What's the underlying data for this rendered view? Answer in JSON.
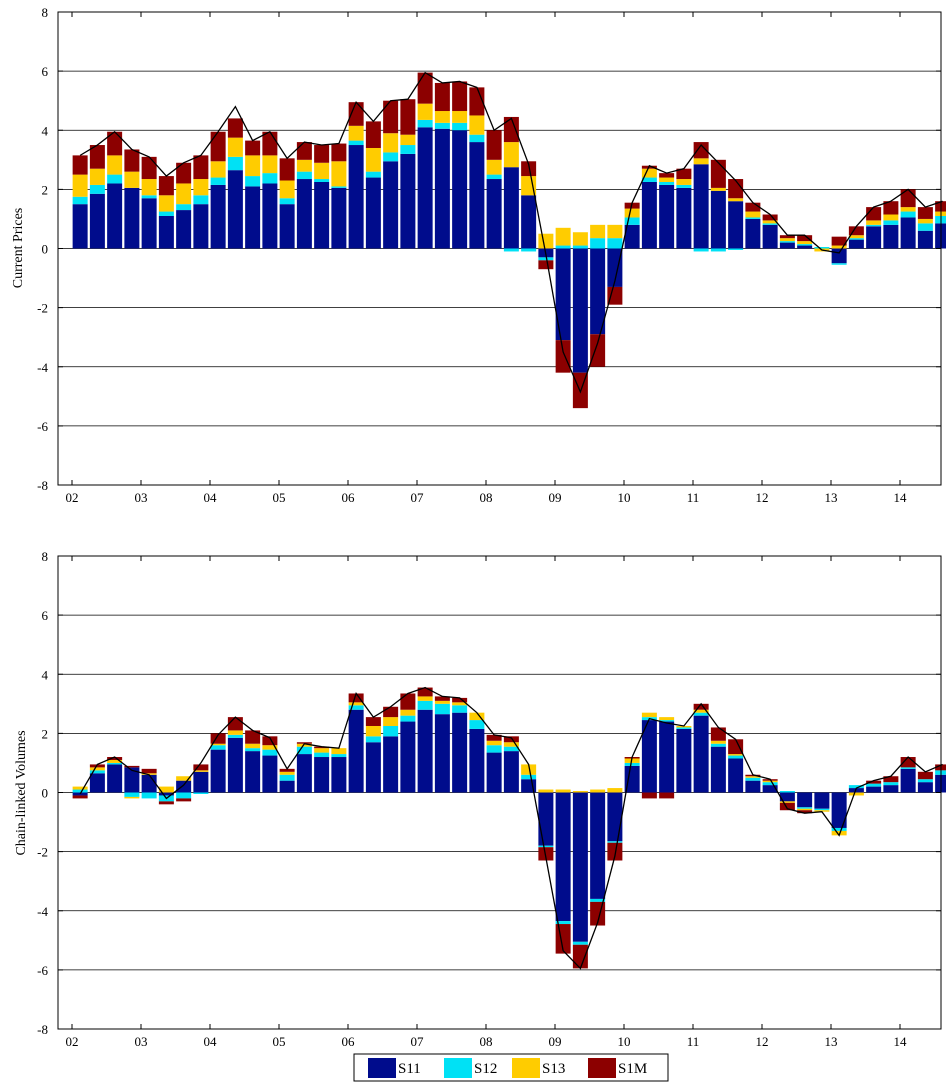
{
  "legend": {
    "items": [
      {
        "label": "S11",
        "color": "#000c8c"
      },
      {
        "label": "S12",
        "color": "#00e1f5"
      },
      {
        "label": "S13",
        "color": "#ffcc00"
      },
      {
        "label": "S1M",
        "color": "#8c0000"
      }
    ]
  },
  "chart_data": [
    {
      "type": "bar",
      "stacked": true,
      "title": "",
      "xlabel": "",
      "ylabel": "Current Prices",
      "ylim": [
        -8,
        8
      ],
      "yticks": [
        -8,
        -6,
        -4,
        -2,
        0,
        2,
        4,
        6,
        8
      ],
      "year_labels": [
        "02",
        "03",
        "04",
        "05",
        "06",
        "07",
        "08",
        "09",
        "10",
        "11",
        "12",
        "13",
        "14"
      ],
      "x": [
        "2002Q1",
        "2002Q2",
        "2002Q3",
        "2002Q4",
        "2003Q1",
        "2003Q2",
        "2003Q3",
        "2003Q4",
        "2004Q1",
        "2004Q2",
        "2004Q3",
        "2004Q4",
        "2005Q1",
        "2005Q2",
        "2005Q3",
        "2005Q4",
        "2006Q1",
        "2006Q2",
        "2006Q3",
        "2006Q4",
        "2007Q1",
        "2007Q2",
        "2007Q3",
        "2007Q4",
        "2008Q1",
        "2008Q2",
        "2008Q3",
        "2008Q4",
        "2009Q1",
        "2009Q2",
        "2009Q3",
        "2009Q4",
        "2010Q1",
        "2010Q2",
        "2010Q3",
        "2010Q4",
        "2011Q1",
        "2011Q2",
        "2011Q3",
        "2011Q4",
        "2012Q1",
        "2012Q2",
        "2012Q3",
        "2012Q4",
        "2013Q1",
        "2013Q2",
        "2013Q3",
        "2013Q4",
        "2014Q1",
        "2014Q2",
        "2014Q3"
      ],
      "grid": "horizontal",
      "series": [
        {
          "name": "S11",
          "color": "#000c8c",
          "values": [
            1.5,
            1.85,
            2.2,
            2.05,
            1.7,
            1.1,
            1.3,
            1.5,
            2.15,
            2.65,
            2.1,
            2.2,
            1.5,
            2.35,
            2.25,
            2.05,
            3.5,
            2.4,
            2.95,
            3.2,
            4.1,
            4.05,
            4.0,
            3.6,
            2.35,
            2.75,
            1.8,
            -0.3,
            -3.1,
            -4.2,
            -2.9,
            -1.3,
            0.8,
            2.25,
            2.15,
            2.05,
            2.85,
            1.95,
            1.6,
            1.0,
            0.8,
            0.2,
            0.1,
            0.0,
            -0.5,
            0.3,
            0.75,
            0.8,
            1.05,
            0.6,
            0.85
          ]
        },
        {
          "name": "S12",
          "color": "#00e1f5",
          "values": [
            0.25,
            0.3,
            0.3,
            0.0,
            0.1,
            0.15,
            0.2,
            0.3,
            0.25,
            0.45,
            0.35,
            0.35,
            0.2,
            0.25,
            0.1,
            0.05,
            0.15,
            0.2,
            0.3,
            0.3,
            0.25,
            0.2,
            0.25,
            0.25,
            0.15,
            -0.1,
            -0.1,
            -0.1,
            0.1,
            0.1,
            0.35,
            0.35,
            0.25,
            0.15,
            0.1,
            0.1,
            -0.1,
            -0.1,
            -0.05,
            0.05,
            0.05,
            0.05,
            0.05,
            0.05,
            -0.05,
            0.05,
            0.05,
            0.15,
            0.2,
            0.25,
            0.25
          ]
        },
        {
          "name": "S13",
          "color": "#ffcc00",
          "values": [
            0.75,
            0.55,
            0.65,
            0.55,
            0.55,
            0.55,
            0.7,
            0.55,
            0.55,
            0.65,
            0.7,
            0.6,
            0.6,
            0.4,
            0.55,
            0.85,
            0.5,
            0.8,
            0.65,
            0.35,
            0.55,
            0.4,
            0.4,
            0.65,
            0.5,
            0.85,
            0.65,
            0.5,
            0.6,
            0.45,
            0.45,
            0.45,
            0.3,
            0.3,
            0.15,
            0.2,
            0.2,
            0.1,
            0.1,
            0.2,
            0.1,
            0.1,
            0.1,
            -0.1,
            0.1,
            0.1,
            0.15,
            0.2,
            0.15,
            0.15,
            0.15
          ]
        },
        {
          "name": "S1M",
          "color": "#8c0000",
          "values": [
            0.65,
            0.8,
            0.8,
            0.75,
            0.75,
            0.65,
            0.7,
            0.8,
            1.0,
            0.65,
            0.5,
            0.8,
            0.75,
            0.6,
            0.6,
            0.6,
            0.8,
            0.9,
            1.1,
            1.2,
            1.05,
            0.95,
            1.0,
            0.95,
            1.0,
            0.85,
            0.5,
            -0.3,
            -1.1,
            -1.2,
            -1.1,
            -0.6,
            0.2,
            0.1,
            0.15,
            0.35,
            0.55,
            0.95,
            0.65,
            0.3,
            0.2,
            0.1,
            0.2,
            0.0,
            0.3,
            0.3,
            0.45,
            0.45,
            0.6,
            0.4,
            0.35
          ]
        }
      ],
      "total": [
        3.15,
        3.5,
        3.95,
        3.35,
        3.1,
        2.45,
        2.9,
        3.15,
        3.95,
        4.8,
        3.65,
        3.95,
        3.05,
        3.6,
        3.5,
        3.55,
        4.95,
        4.3,
        5.0,
        5.05,
        5.95,
        5.6,
        5.65,
        5.45,
        4.0,
        4.4,
        2.85,
        -0.2,
        -3.5,
        -4.85,
        -3.2,
        -1.1,
        1.55,
        2.8,
        2.55,
        2.7,
        3.5,
        2.9,
        2.3,
        1.55,
        1.15,
        0.45,
        0.45,
        -0.05,
        -0.15,
        0.75,
        1.4,
        1.6,
        2.0,
        1.4,
        1.6
      ]
    },
    {
      "type": "bar",
      "stacked": true,
      "title": "",
      "xlabel": "",
      "ylabel": "Chain-linked Volumes",
      "ylim": [
        -8,
        8
      ],
      "yticks": [
        -8,
        -6,
        -4,
        -2,
        0,
        2,
        4,
        6,
        8
      ],
      "year_labels": [
        "02",
        "03",
        "04",
        "05",
        "06",
        "07",
        "08",
        "09",
        "10",
        "11",
        "12",
        "13",
        "14"
      ],
      "x": [
        "2002Q1",
        "2002Q2",
        "2002Q3",
        "2002Q4",
        "2003Q1",
        "2003Q2",
        "2003Q3",
        "2003Q4",
        "2004Q1",
        "2004Q2",
        "2004Q3",
        "2004Q4",
        "2005Q1",
        "2005Q2",
        "2005Q3",
        "2005Q4",
        "2006Q1",
        "2006Q2",
        "2006Q3",
        "2006Q4",
        "2007Q1",
        "2007Q2",
        "2007Q3",
        "2007Q4",
        "2008Q1",
        "2008Q2",
        "2008Q3",
        "2008Q4",
        "2009Q1",
        "2009Q2",
        "2009Q3",
        "2009Q4",
        "2010Q1",
        "2010Q2",
        "2010Q3",
        "2010Q4",
        "2011Q1",
        "2011Q2",
        "2011Q3",
        "2011Q4",
        "2012Q1",
        "2012Q2",
        "2012Q3",
        "2012Q4",
        "2013Q1",
        "2013Q2",
        "2013Q3",
        "2013Q4",
        "2014Q1",
        "2014Q2",
        "2014Q3"
      ],
      "grid": "horizontal",
      "series": [
        {
          "name": "S11",
          "color": "#000c8c",
          "values": [
            -0.1,
            0.65,
            0.95,
            0.85,
            0.6,
            -0.1,
            0.4,
            0.7,
            1.45,
            1.85,
            1.4,
            1.25,
            0.4,
            1.3,
            1.2,
            1.2,
            2.8,
            1.7,
            1.9,
            2.4,
            2.8,
            2.65,
            2.7,
            2.15,
            1.35,
            1.4,
            0.45,
            -1.8,
            -4.35,
            -5.05,
            -3.6,
            -1.65,
            0.9,
            2.45,
            2.4,
            2.15,
            2.6,
            1.55,
            1.15,
            0.4,
            0.25,
            -0.3,
            -0.5,
            -0.55,
            -1.2,
            0.15,
            0.2,
            0.25,
            0.8,
            0.35,
            0.6
          ]
        },
        {
          "name": "S12",
          "color": "#00e1f5",
          "values": [
            0.1,
            0.1,
            0.05,
            -0.15,
            -0.2,
            -0.2,
            -0.2,
            -0.05,
            0.15,
            0.1,
            0.1,
            0.2,
            0.2,
            0.25,
            0.15,
            0.1,
            0.15,
            0.2,
            0.35,
            0.2,
            0.3,
            0.35,
            0.25,
            0.3,
            0.25,
            0.15,
            0.15,
            -0.05,
            -0.1,
            -0.1,
            -0.1,
            -0.05,
            0.1,
            0.1,
            0.05,
            0.05,
            0.1,
            0.1,
            0.1,
            0.1,
            0.1,
            0.05,
            -0.05,
            -0.05,
            -0.1,
            0.1,
            0.1,
            0.1,
            0.05,
            0.1,
            0.15
          ]
        },
        {
          "name": "S13",
          "color": "#ffcc00",
          "values": [
            0.1,
            0.1,
            0.1,
            -0.05,
            0.05,
            0.2,
            0.15,
            0.05,
            0.05,
            0.15,
            0.15,
            0.15,
            0.1,
            0.1,
            0.15,
            0.2,
            0.1,
            0.35,
            0.3,
            0.2,
            0.15,
            0.1,
            0.1,
            0.25,
            0.15,
            0.15,
            0.35,
            0.1,
            0.1,
            0.05,
            0.1,
            0.15,
            0.15,
            0.15,
            0.1,
            0.05,
            0.1,
            0.1,
            0.05,
            0.05,
            0.05,
            -0.05,
            -0.05,
            -0.05,
            -0.15,
            -0.1,
            0.0,
            0.0,
            0.0,
            0.0,
            0.0
          ]
        },
        {
          "name": "S1M",
          "color": "#8c0000",
          "values": [
            -0.1,
            0.1,
            0.1,
            0.05,
            0.15,
            -0.1,
            -0.1,
            0.2,
            0.35,
            0.45,
            0.45,
            0.3,
            0.1,
            0.05,
            0.05,
            0.0,
            0.3,
            0.3,
            0.35,
            0.55,
            0.3,
            0.15,
            0.15,
            0.0,
            0.2,
            0.2,
            0.0,
            -0.45,
            -1.0,
            -0.8,
            -0.8,
            -0.6,
            0.05,
            -0.2,
            -0.2,
            0.0,
            0.2,
            0.45,
            0.5,
            0.05,
            0.05,
            -0.25,
            -0.1,
            0.0,
            0.0,
            0.0,
            0.1,
            0.2,
            0.35,
            0.25,
            0.2
          ]
        }
      ],
      "total": [
        -0.05,
        0.95,
        1.2,
        0.75,
        0.6,
        -0.2,
        0.25,
        1.0,
        1.95,
        2.55,
        2.1,
        1.85,
        0.8,
        1.65,
        1.55,
        1.5,
        3.35,
        2.55,
        2.9,
        3.35,
        3.55,
        3.25,
        3.2,
        2.7,
        1.95,
        1.85,
        0.95,
        -2.2,
        -5.35,
        -5.95,
        -4.4,
        -2.15,
        1.2,
        2.5,
        2.35,
        2.25,
        3.0,
        2.2,
        1.8,
        0.6,
        0.45,
        -0.55,
        -0.7,
        -0.65,
        -1.45,
        0.15,
        0.4,
        0.55,
        1.2,
        0.7,
        0.95
      ]
    }
  ]
}
